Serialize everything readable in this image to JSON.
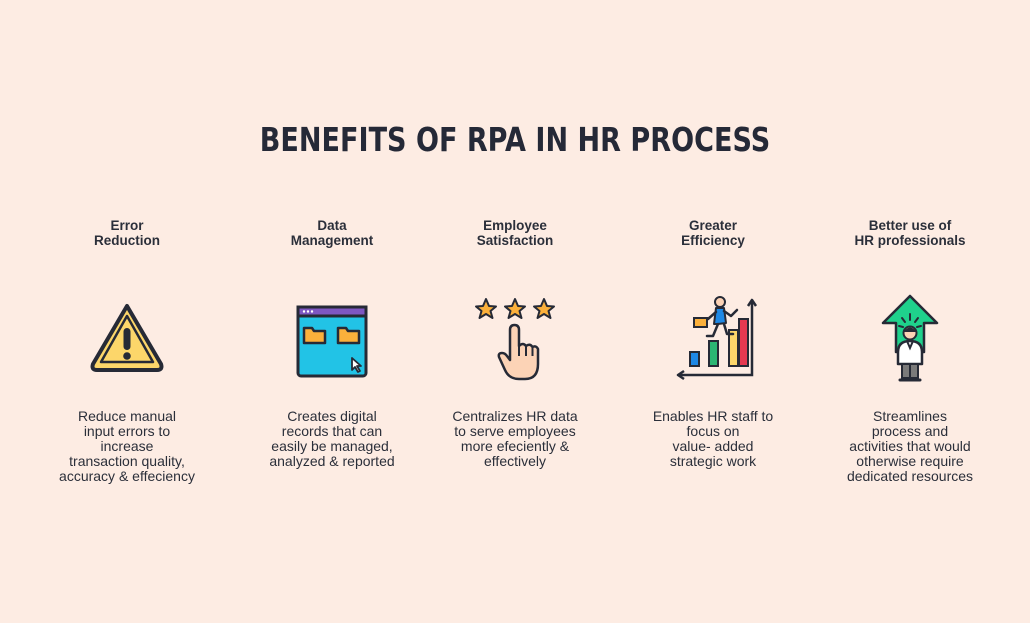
{
  "title": "BENEFITS OF RPA IN HR PROCESS",
  "benefits": [
    {
      "heading": "Error\nReduction",
      "icon": "warning-icon",
      "description": "Reduce manual\ninput errors to\nincrease\ntransaction quality,\naccuracy & effeciency"
    },
    {
      "heading": "Data\nManagement",
      "icon": "folder-window-icon",
      "description": "Creates digital\nrecords that can\neasily be managed,\nanalyzed & reported"
    },
    {
      "heading": "Employee\nSatisfaction",
      "icon": "stars-rating-icon",
      "description": "Centralizes HR data\nto serve employees\nmore efeciently &\neffectively"
    },
    {
      "heading": "Greater\nEfficiency",
      "icon": "growth-chart-icon",
      "description": "Enables HR staff to\nfocus on\nvalue- added\nstrategic work"
    },
    {
      "heading": "Better use of\nHR professionals",
      "icon": "person-growth-icon",
      "description": "Streamlines\nprocess and\nactivities that would\notherwise require\ndedicated resources"
    }
  ]
}
